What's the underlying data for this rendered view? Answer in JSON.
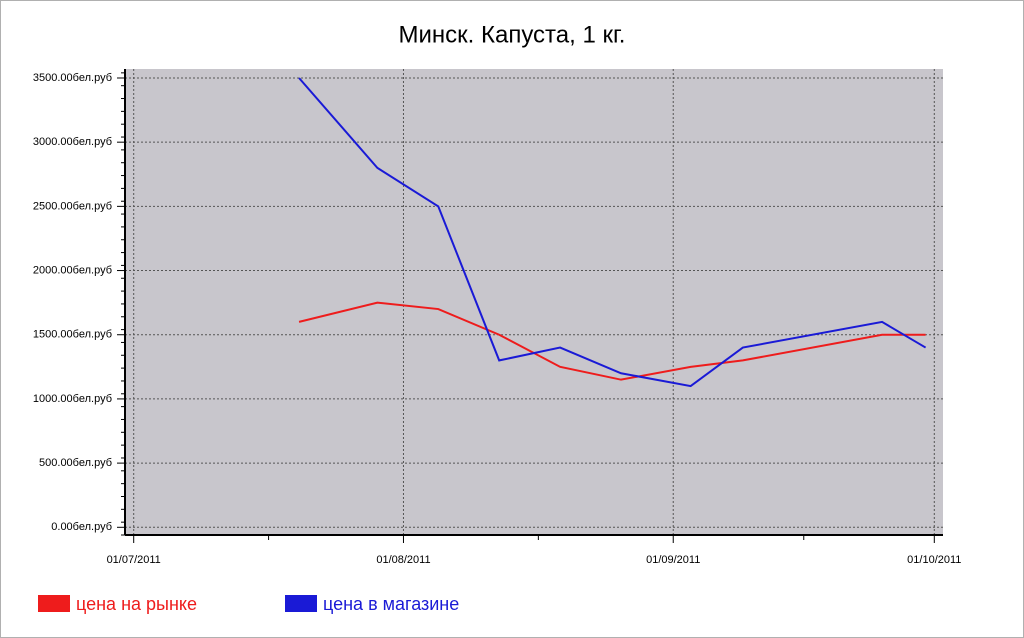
{
  "chart_data": {
    "type": "line",
    "title": "Минск. Капуста, 1 кг.",
    "x": [
      "2011-07-20",
      "2011-07-29",
      "2011-08-05",
      "2011-08-12",
      "2011-08-19",
      "2011-08-26",
      "2011-09-03",
      "2011-09-09",
      "2011-09-25",
      "2011-09-30"
    ],
    "series": [
      {
        "name": "цена на рынке",
        "color": "#ee1c1c",
        "values": [
          1600,
          1750,
          1700,
          1500,
          1250,
          1150,
          1250,
          1300,
          1500,
          1500
        ]
      },
      {
        "name": "цена в магазине",
        "color": "#1a1ad6",
        "values": [
          3500,
          2800,
          2500,
          1300,
          1400,
          1200,
          1100,
          1400,
          1600,
          1400
        ]
      }
    ],
    "xlim": [
      "2011-06-30",
      "2011-10-02"
    ],
    "xticks": [
      {
        "value": "2011-07-01",
        "label": "01/07/2011"
      },
      {
        "value": "2011-08-01",
        "label": "01/08/2011"
      },
      {
        "value": "2011-09-01",
        "label": "01/09/2011"
      },
      {
        "value": "2011-10-01",
        "label": "01/10/2011"
      }
    ],
    "ylim": [
      -60,
      3570
    ],
    "yticks": [
      {
        "value": 0,
        "label": "0.00бел.руб"
      },
      {
        "value": 500,
        "label": "500.00бел.руб"
      },
      {
        "value": 1000,
        "label": "1000.00бел.руб"
      },
      {
        "value": 1500,
        "label": "1500.00бел.руб"
      },
      {
        "value": 2000,
        "label": "2000.00бел.руб"
      },
      {
        "value": 2500,
        "label": "2500.00бел.руб"
      },
      {
        "value": 3000,
        "label": "3000.00бел.руб"
      },
      {
        "value": 3500,
        "label": "3500.00бел.руб"
      }
    ],
    "grid": true,
    "legend": "bottom-left"
  }
}
